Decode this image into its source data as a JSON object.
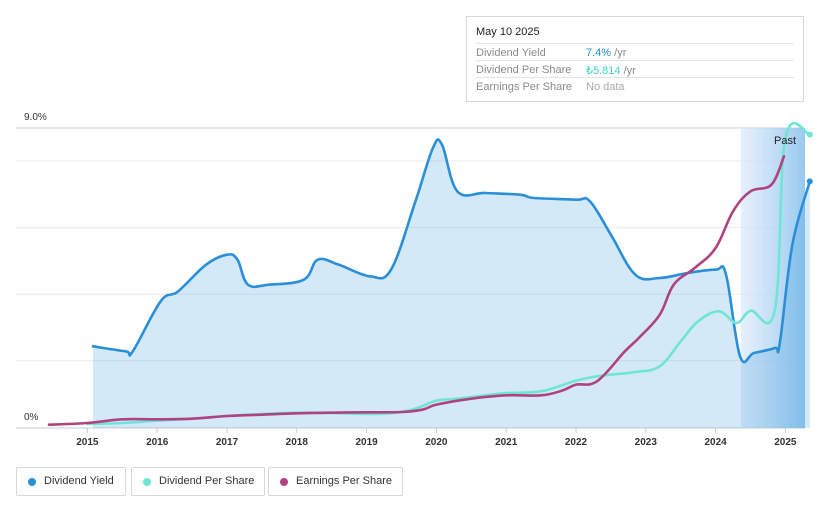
{
  "tooltip": {
    "date": "May 10 2025",
    "rows": [
      {
        "label": "Dividend Yield",
        "value": "7.4%",
        "unit": " /yr",
        "color": "#1a8fd8"
      },
      {
        "label": "Dividend Per Share",
        "value": "₺5.814",
        "unit": " /yr",
        "color": "#3fd3c6"
      },
      {
        "label": "Earnings Per Share",
        "value": "No data",
        "unit": "",
        "color": "#aaaaaa"
      }
    ]
  },
  "past_label": "Past",
  "legend": [
    {
      "label": "Dividend Yield",
      "color": "#2a8fd8"
    },
    {
      "label": "Dividend Per Share",
      "color": "#6fe5d3"
    },
    {
      "label": "Earnings Per Share",
      "color": "#b04282"
    }
  ],
  "chart_data": {
    "type": "line",
    "x_ticks": [
      "2015",
      "2016",
      "2017",
      "2018",
      "2019",
      "2020",
      "2021",
      "2022",
      "2023",
      "2024",
      "2025"
    ],
    "y_axis_labels": {
      "top": "9.0%",
      "bottom": "0%"
    },
    "ylim": [
      0,
      9.0
    ],
    "xlim": [
      2014.45,
      2025.35
    ],
    "forecast_start": 2024.36,
    "series": [
      {
        "name": "Dividend Yield",
        "color": "#2a8fd8",
        "filled": true,
        "points": [
          [
            2015.08,
            2.45
          ],
          [
            2015.55,
            2.3
          ],
          [
            2015.65,
            2.3
          ],
          [
            2016.05,
            3.8
          ],
          [
            2016.3,
            4.1
          ],
          [
            2016.7,
            4.9
          ],
          [
            2017.0,
            5.2
          ],
          [
            2017.15,
            5.05
          ],
          [
            2017.3,
            4.3
          ],
          [
            2017.6,
            4.3
          ],
          [
            2018.1,
            4.45
          ],
          [
            2018.3,
            5.05
          ],
          [
            2018.6,
            4.9
          ],
          [
            2019.05,
            4.55
          ],
          [
            2019.35,
            4.75
          ],
          [
            2019.7,
            6.8
          ],
          [
            2019.95,
            8.4
          ],
          [
            2020.08,
            8.5
          ],
          [
            2020.3,
            7.1
          ],
          [
            2020.7,
            7.05
          ],
          [
            2021.2,
            7.0
          ],
          [
            2021.4,
            6.9
          ],
          [
            2022.0,
            6.85
          ],
          [
            2022.2,
            6.8
          ],
          [
            2022.5,
            5.8
          ],
          [
            2022.85,
            4.6
          ],
          [
            2023.2,
            4.5
          ],
          [
            2023.6,
            4.65
          ],
          [
            2024.0,
            4.75
          ],
          [
            2024.15,
            4.6
          ],
          [
            2024.35,
            2.15
          ],
          [
            2024.55,
            2.25
          ],
          [
            2024.85,
            2.4
          ],
          [
            2024.92,
            2.55
          ],
          [
            2025.1,
            5.5
          ],
          [
            2025.35,
            7.4
          ]
        ]
      },
      {
        "name": "Dividend Per Share",
        "color": "#6fe5d3",
        "filled": false,
        "points": [
          [
            2015.0,
            0.12
          ],
          [
            2015.5,
            0.15
          ],
          [
            2016.0,
            0.22
          ],
          [
            2016.5,
            0.28
          ],
          [
            2017.0,
            0.36
          ],
          [
            2017.5,
            0.42
          ],
          [
            2018.0,
            0.46
          ],
          [
            2018.5,
            0.45
          ],
          [
            2019.0,
            0.42
          ],
          [
            2019.4,
            0.45
          ],
          [
            2019.7,
            0.58
          ],
          [
            2020.0,
            0.82
          ],
          [
            2020.3,
            0.88
          ],
          [
            2020.7,
            0.98
          ],
          [
            2021.0,
            1.05
          ],
          [
            2021.5,
            1.1
          ],
          [
            2022.0,
            1.42
          ],
          [
            2022.3,
            1.55
          ],
          [
            2022.6,
            1.62
          ],
          [
            2022.85,
            1.68
          ],
          [
            2023.2,
            1.85
          ],
          [
            2023.5,
            2.6
          ],
          [
            2023.75,
            3.2
          ],
          [
            2024.05,
            3.5
          ],
          [
            2024.3,
            3.15
          ],
          [
            2024.5,
            3.52
          ],
          [
            2024.85,
            3.55
          ],
          [
            2025.0,
            8.7
          ],
          [
            2025.35,
            8.8
          ]
        ]
      },
      {
        "name": "Earnings Per Share",
        "color": "#b04282",
        "filled": false,
        "points": [
          [
            2014.45,
            0.1
          ],
          [
            2015.0,
            0.15
          ],
          [
            2015.5,
            0.26
          ],
          [
            2016.0,
            0.26
          ],
          [
            2016.5,
            0.28
          ],
          [
            2017.0,
            0.36
          ],
          [
            2017.5,
            0.4
          ],
          [
            2018.0,
            0.44
          ],
          [
            2018.5,
            0.46
          ],
          [
            2019.0,
            0.47
          ],
          [
            2019.5,
            0.48
          ],
          [
            2019.8,
            0.55
          ],
          [
            2020.0,
            0.7
          ],
          [
            2020.5,
            0.88
          ],
          [
            2021.0,
            0.98
          ],
          [
            2021.5,
            0.98
          ],
          [
            2021.8,
            1.12
          ],
          [
            2022.0,
            1.3
          ],
          [
            2022.3,
            1.4
          ],
          [
            2022.7,
            2.3
          ],
          [
            2022.9,
            2.7
          ],
          [
            2023.2,
            3.4
          ],
          [
            2023.4,
            4.3
          ],
          [
            2023.7,
            4.8
          ],
          [
            2024.0,
            5.4
          ],
          [
            2024.25,
            6.5
          ],
          [
            2024.5,
            7.1
          ],
          [
            2024.8,
            7.3
          ],
          [
            2024.98,
            8.15
          ]
        ]
      }
    ]
  }
}
